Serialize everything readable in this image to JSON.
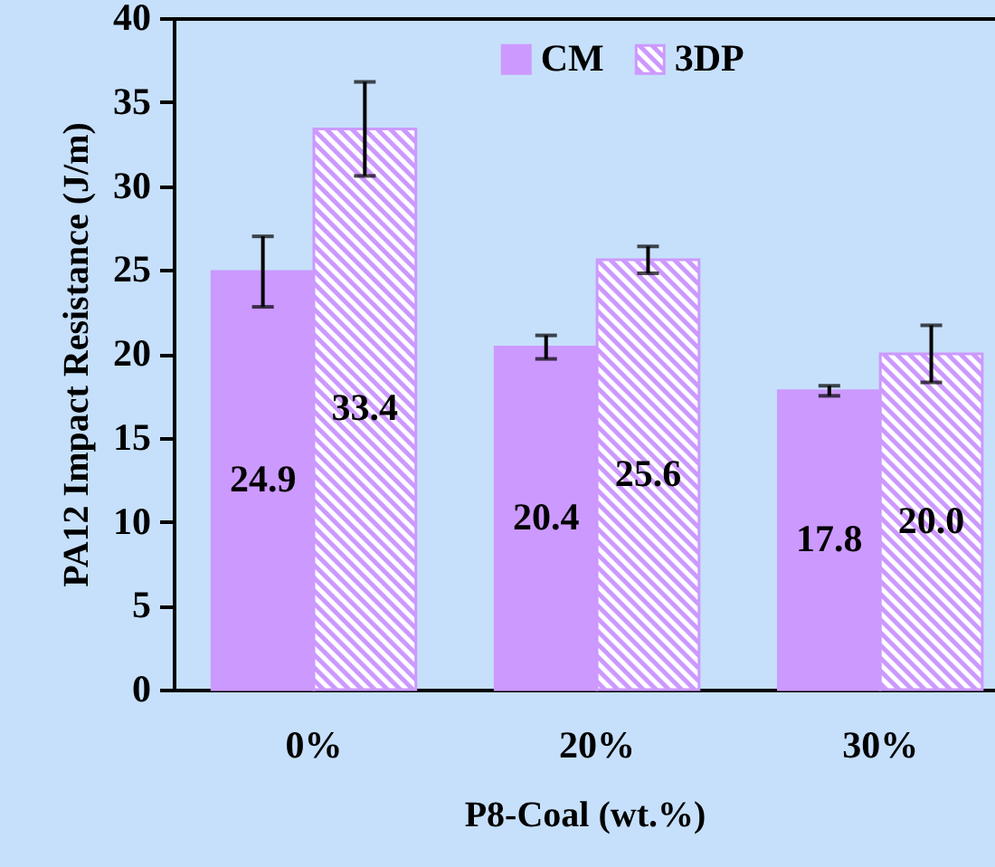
{
  "chart_data": {
    "type": "bar",
    "xlabel": "P8-Coal (wt.%)",
    "ylabel": "PA12 Impact Resistance (J/m)",
    "categories": [
      "0%",
      "20%",
      "30%"
    ],
    "series": [
      {
        "name": "CM",
        "color": "#cc99ff",
        "values": [
          24.9,
          20.4,
          17.8
        ],
        "errors": [
          2.1,
          0.7,
          0.3
        ],
        "value_labels": [
          "24.9",
          "20.4",
          "17.8"
        ]
      },
      {
        "name": "3DP",
        "color": "#cc99ff",
        "values": [
          33.4,
          25.6,
          20.0
        ],
        "errors": [
          2.8,
          0.8,
          1.7
        ],
        "value_labels": [
          "33.4",
          "25.6",
          "20.0"
        ]
      }
    ],
    "ylim": [
      0,
      40
    ],
    "yticks": [
      0,
      5,
      10,
      15,
      20,
      25,
      30,
      35,
      40
    ],
    "grid": false,
    "legend": "top"
  }
}
